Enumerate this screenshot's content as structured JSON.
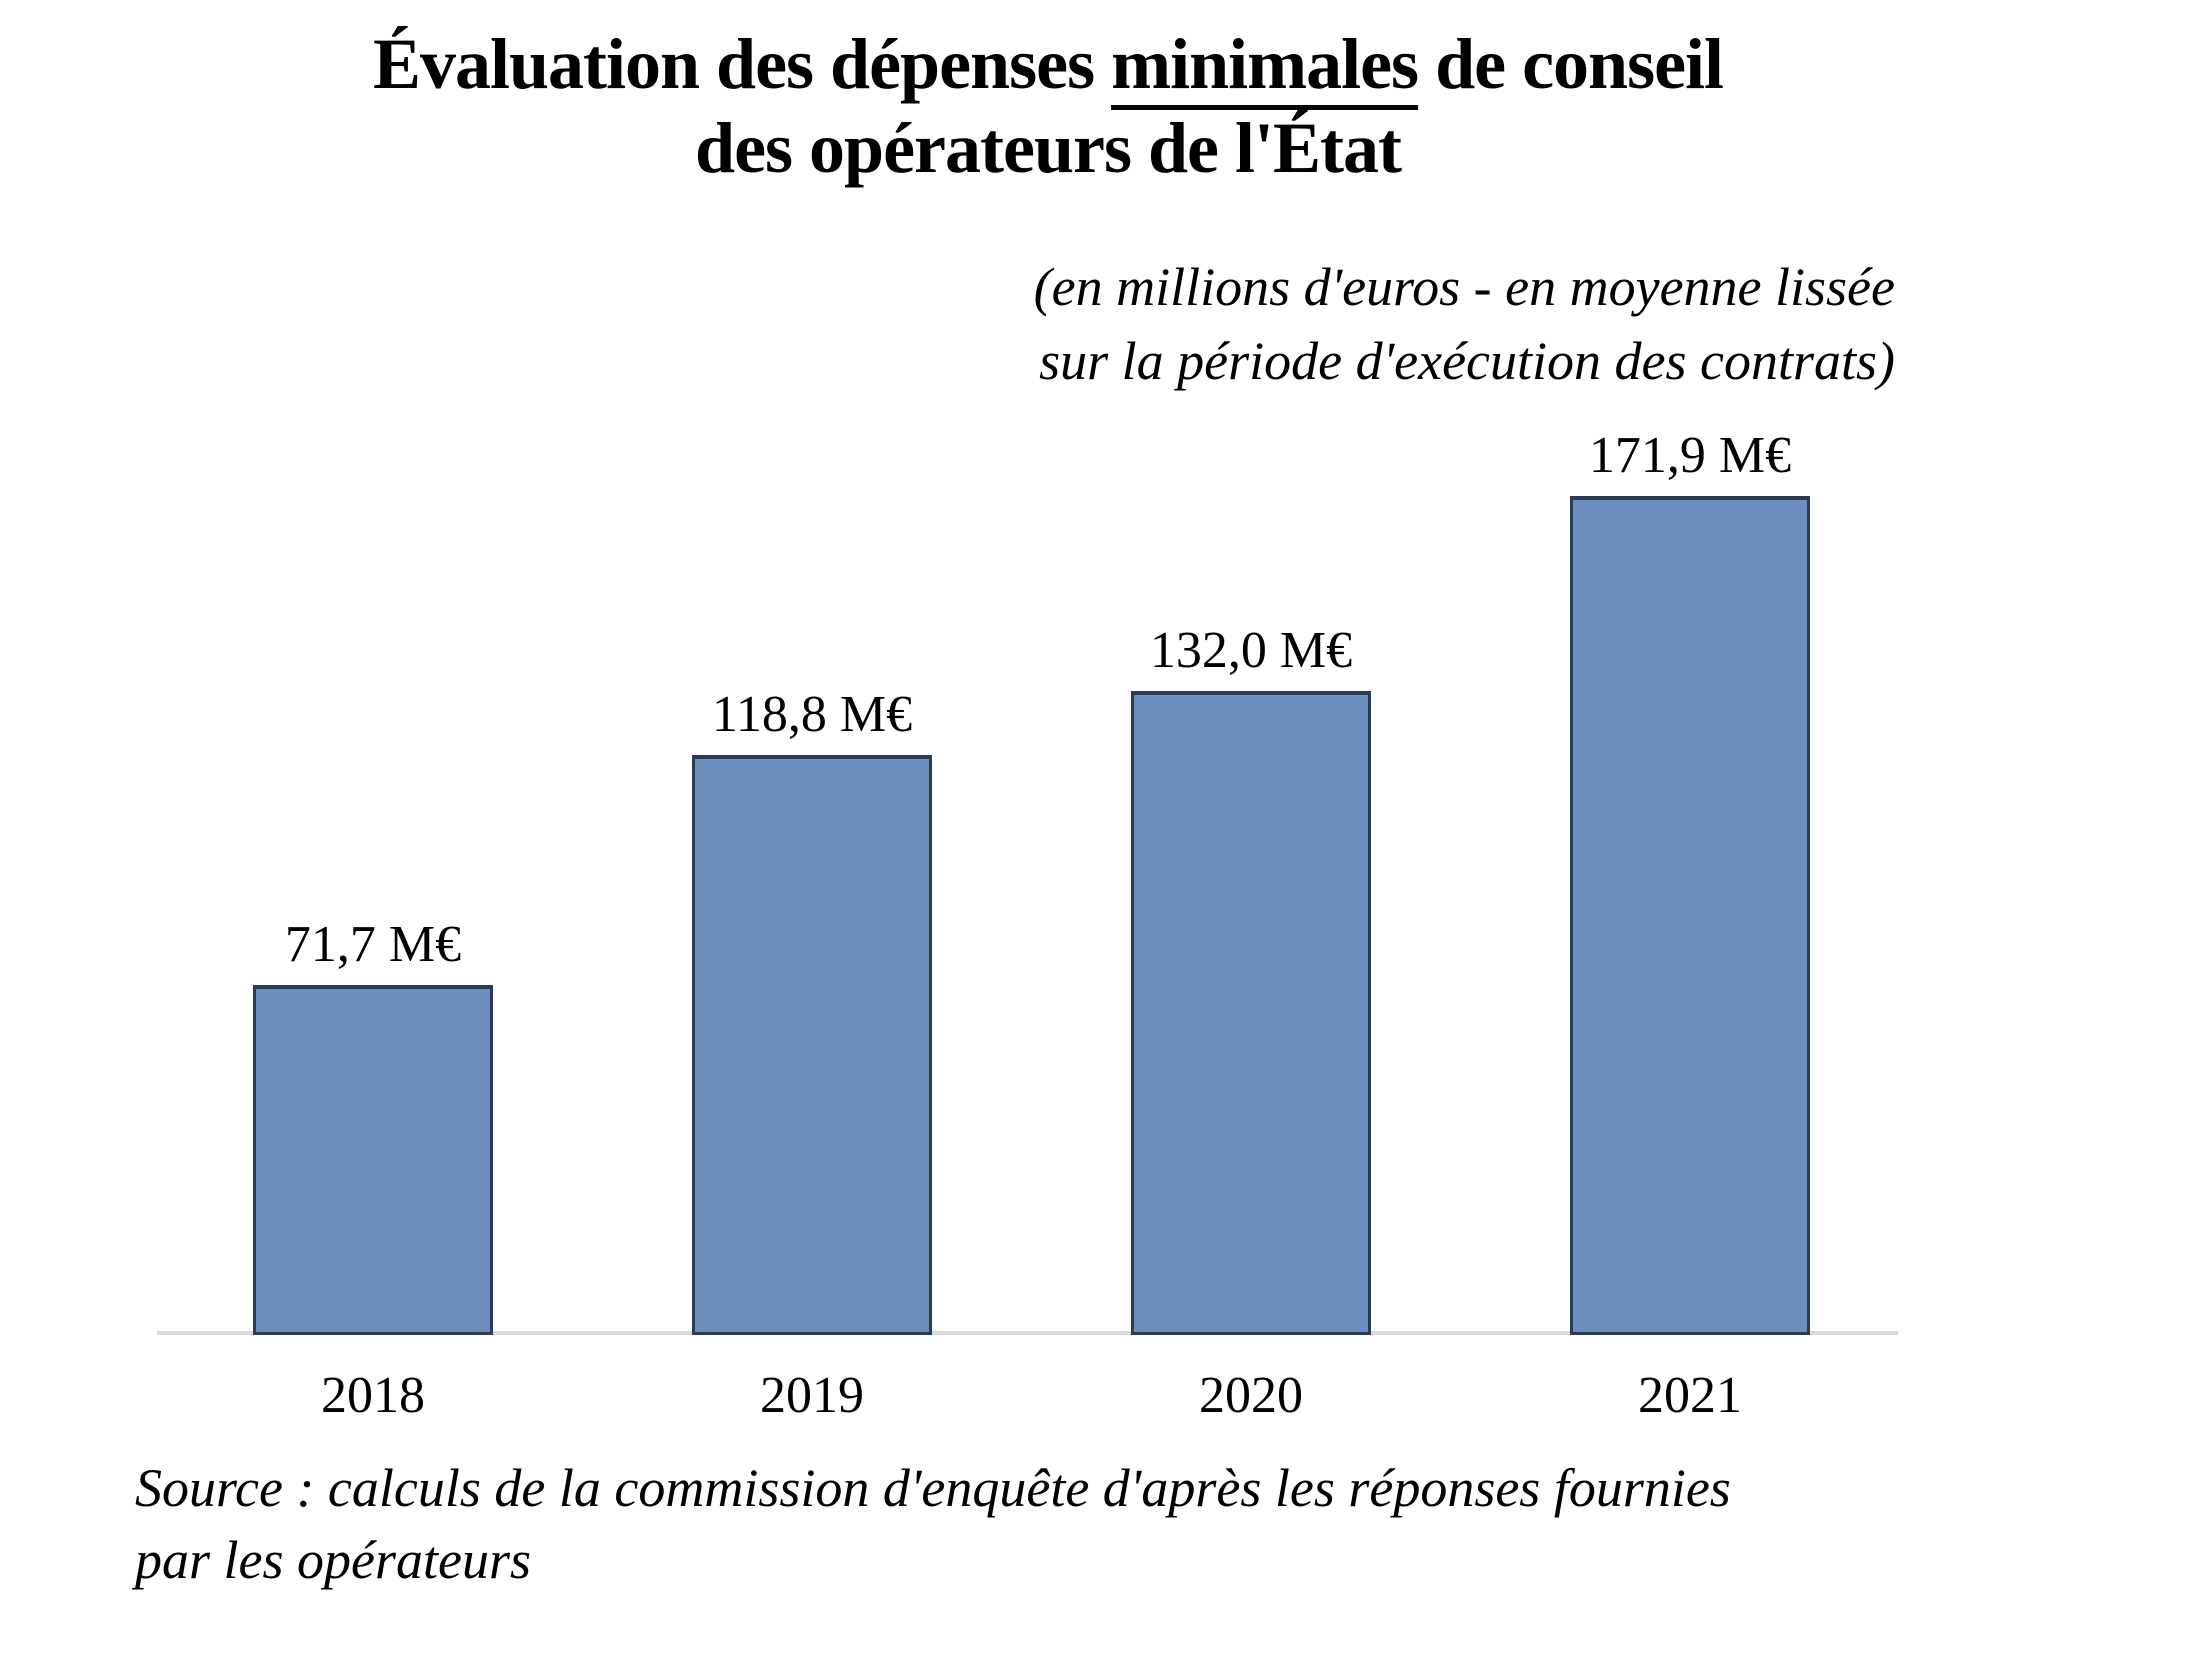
{
  "title": {
    "line1_prefix": "Évaluation des dépenses ",
    "line1_underlined": "minimales",
    "line1_suffix": " de conseil",
    "line2": "des opérateurs de l'État"
  },
  "subtitle": {
    "line1": "(en millions d'euros - en moyenne lissée",
    "line2": "sur la période d'exécution des contrats)"
  },
  "source": {
    "line1": "Source : calculs de la commission d'enquête d'après les réponses fournies",
    "line2": "par les opérateurs"
  },
  "chart_data": {
    "type": "bar",
    "title": "Évaluation des dépenses minimales de conseil des opérateurs de l'État",
    "subtitle": "(en millions d'euros - en moyenne lissée sur la période d'exécution des contrats)",
    "source": "Source : calculs de la commission d'enquête d'après les réponses fournies par les opérateurs",
    "categories": [
      "2018",
      "2019",
      "2020",
      "2021"
    ],
    "values": [
      71.7,
      118.8,
      132.0,
      171.9
    ],
    "value_labels": [
      "71,7 M€",
      "118,8 M€",
      "132,0 M€",
      "171,9 M€"
    ],
    "unit": "M€",
    "xlabel": "",
    "ylabel": "",
    "ylim": [
      0,
      180
    ],
    "grid": false,
    "legend_position": "none",
    "colors": {
      "bar_fill": "#6C8EBC",
      "bar_border": "#2B3A55",
      "axis_line": "#D9D9D9",
      "text": "#000000"
    }
  }
}
